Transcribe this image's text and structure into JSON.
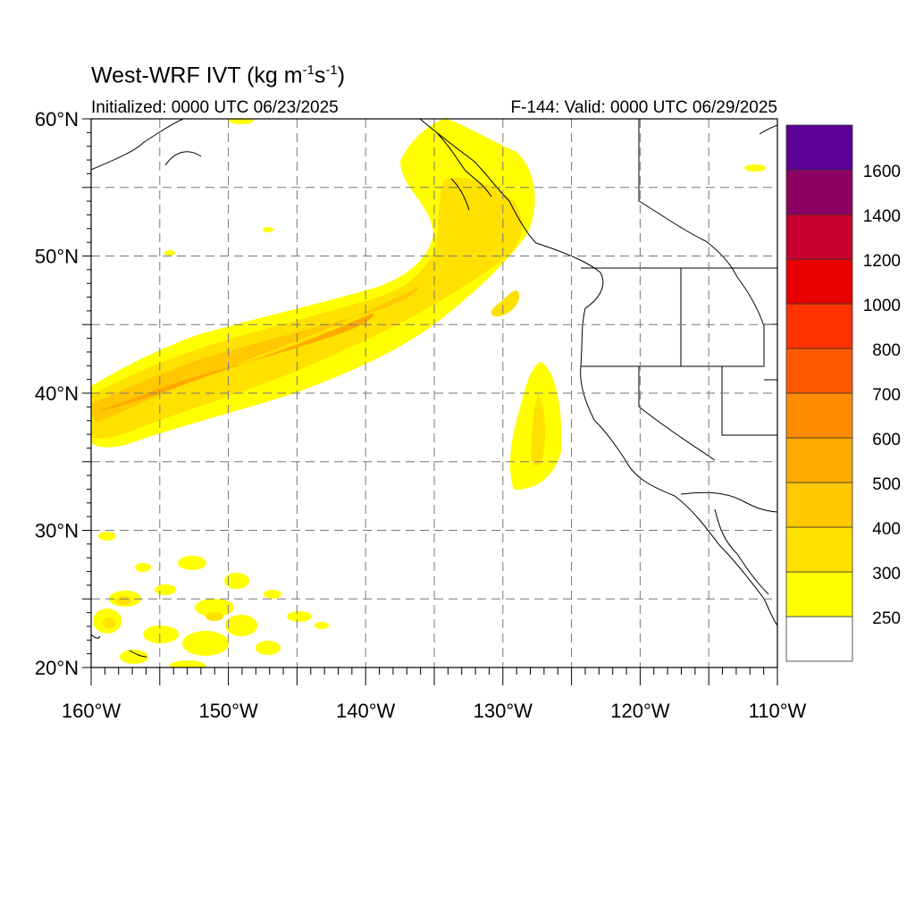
{
  "header": {
    "title_main": "West-WRF IVT (kg m",
    "title_exp1": "-1",
    "title_mid": "s",
    "title_exp2": "-1",
    "title_end": ")",
    "initialized": "Initialized: 0000 UTC 06/23/2025",
    "valid": "F-144: Valid: 0000 UTC 06/29/2025"
  },
  "map": {
    "lon_labels": [
      "160°W",
      "150°W",
      "140°W",
      "130°W",
      "120°W",
      "110°W"
    ],
    "lat_labels": [
      "60°N",
      "50°N",
      "40°N",
      "30°N",
      "20°N"
    ],
    "lon_range": [
      -160,
      -110
    ],
    "lat_range": [
      20,
      60
    ],
    "grid": "dashed"
  },
  "colorbar": {
    "levels": [
      "250",
      "300",
      "400",
      "500",
      "600",
      "700",
      "800",
      "1000",
      "1200",
      "1400",
      "1600"
    ],
    "colors": [
      "#ffffff",
      "#ffff00",
      "#ffe100",
      "#ffc800",
      "#ffaa00",
      "#ff8c00",
      "#ff5a00",
      "#ff3200",
      "#e60000",
      "#c80032",
      "#8c0064",
      "#5a0096"
    ]
  }
}
